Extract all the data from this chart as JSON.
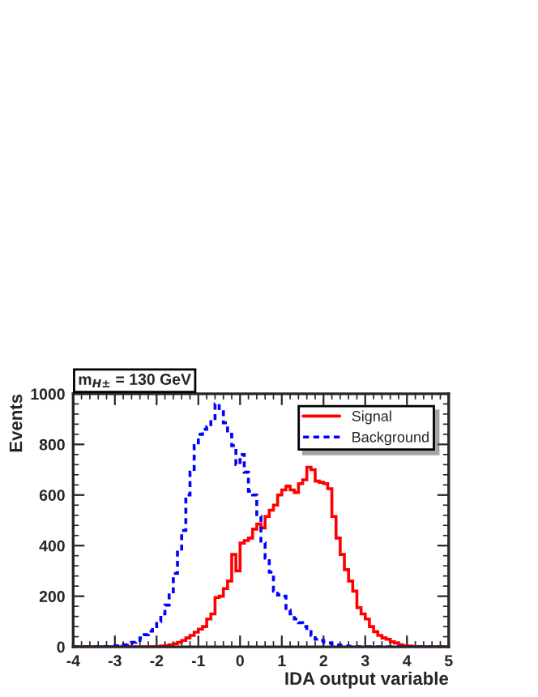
{
  "chart_data": {
    "type": "histogram",
    "title": "m$_{H±}$ = 130 GeV",
    "xlabel": "IDA output variable",
    "ylabel": "Events",
    "bins": [
      -4.0,
      -3.9,
      -3.8,
      -3.7,
      -3.6,
      -3.5,
      -3.4,
      -3.3,
      -3.2,
      -3.1,
      -3.0,
      -2.9,
      -2.8,
      -2.7,
      -2.6,
      -2.5,
      -2.4,
      -2.3,
      -2.2,
      -2.1,
      -2.0,
      -1.9,
      -1.8,
      -1.7,
      -1.6,
      -1.5,
      -1.4,
      -1.3,
      -1.2,
      -1.1,
      -1.0,
      -0.9,
      -0.8,
      -0.7,
      -0.6,
      -0.5,
      -0.4,
      -0.3,
      -0.2,
      -0.1,
      0.0,
      0.1,
      0.2,
      0.3,
      0.4,
      0.5,
      0.6,
      0.7,
      0.8,
      0.9,
      1.0,
      1.1,
      1.2,
      1.3,
      1.4,
      1.5,
      1.6,
      1.7,
      1.8,
      1.9,
      2.0,
      2.1,
      2.2,
      2.3,
      2.4,
      2.5,
      2.6,
      2.7,
      2.8,
      2.9,
      3.0,
      3.1,
      3.2,
      3.3,
      3.4,
      3.5,
      3.6,
      3.7,
      3.8,
      3.9,
      4.0,
      4.1,
      4.2,
      4.3,
      4.4,
      4.5,
      4.6,
      4.7,
      4.8,
      4.9,
      5.0
    ],
    "series": [
      {
        "name": "Signal",
        "color": "#ff0000",
        "line_style": "solid",
        "values": [
          0,
          0,
          0,
          0,
          0,
          0,
          0,
          0,
          0,
          0,
          0,
          0,
          0,
          0,
          0,
          0,
          0,
          0,
          0,
          0,
          2,
          3,
          5,
          8,
          12,
          18,
          25,
          35,
          45,
          58,
          70,
          80,
          110,
          130,
          195,
          200,
          230,
          260,
          365,
          300,
          410,
          420,
          430,
          465,
          485,
          470,
          515,
          540,
          560,
          600,
          620,
          635,
          620,
          610,
          645,
          660,
          710,
          700,
          655,
          650,
          645,
          625,
          515,
          430,
          365,
          305,
          260,
          220,
          155,
          130,
          110,
          80,
          60,
          45,
          35,
          30,
          20,
          15,
          8,
          4,
          3,
          2,
          1,
          1,
          0,
          0,
          0,
          0,
          0,
          0
        ]
      },
      {
        "name": "Background",
        "color": "#0000ff",
        "line_style": "dashed",
        "values": [
          0,
          0,
          0,
          0,
          0,
          0,
          0,
          0,
          1,
          2,
          4,
          6,
          8,
          12,
          18,
          25,
          35,
          48,
          62,
          80,
          100,
          130,
          165,
          205,
          290,
          380,
          460,
          600,
          690,
          795,
          840,
          860,
          870,
          890,
          960,
          935,
          885,
          840,
          795,
          720,
          760,
          690,
          615,
          600,
          515,
          410,
          350,
          295,
          220,
          205,
          200,
          145,
          130,
          110,
          95,
          80,
          60,
          45,
          30,
          25,
          18,
          15,
          10,
          7,
          5,
          3,
          2,
          1,
          0,
          0,
          0,
          0,
          0,
          0,
          0,
          0,
          0,
          0,
          0,
          0,
          0,
          0,
          0,
          0,
          0,
          0,
          0,
          0,
          0,
          0
        ]
      }
    ],
    "xlim": [
      -4,
      5
    ],
    "xticks": [
      -4,
      -3,
      -2,
      -1,
      0,
      1,
      2,
      3,
      4,
      5
    ],
    "ylim": [
      0,
      1000
    ],
    "yticks": [
      0,
      200,
      400,
      600,
      800,
      1000
    ],
    "legend": "top right",
    "grid": false
  }
}
